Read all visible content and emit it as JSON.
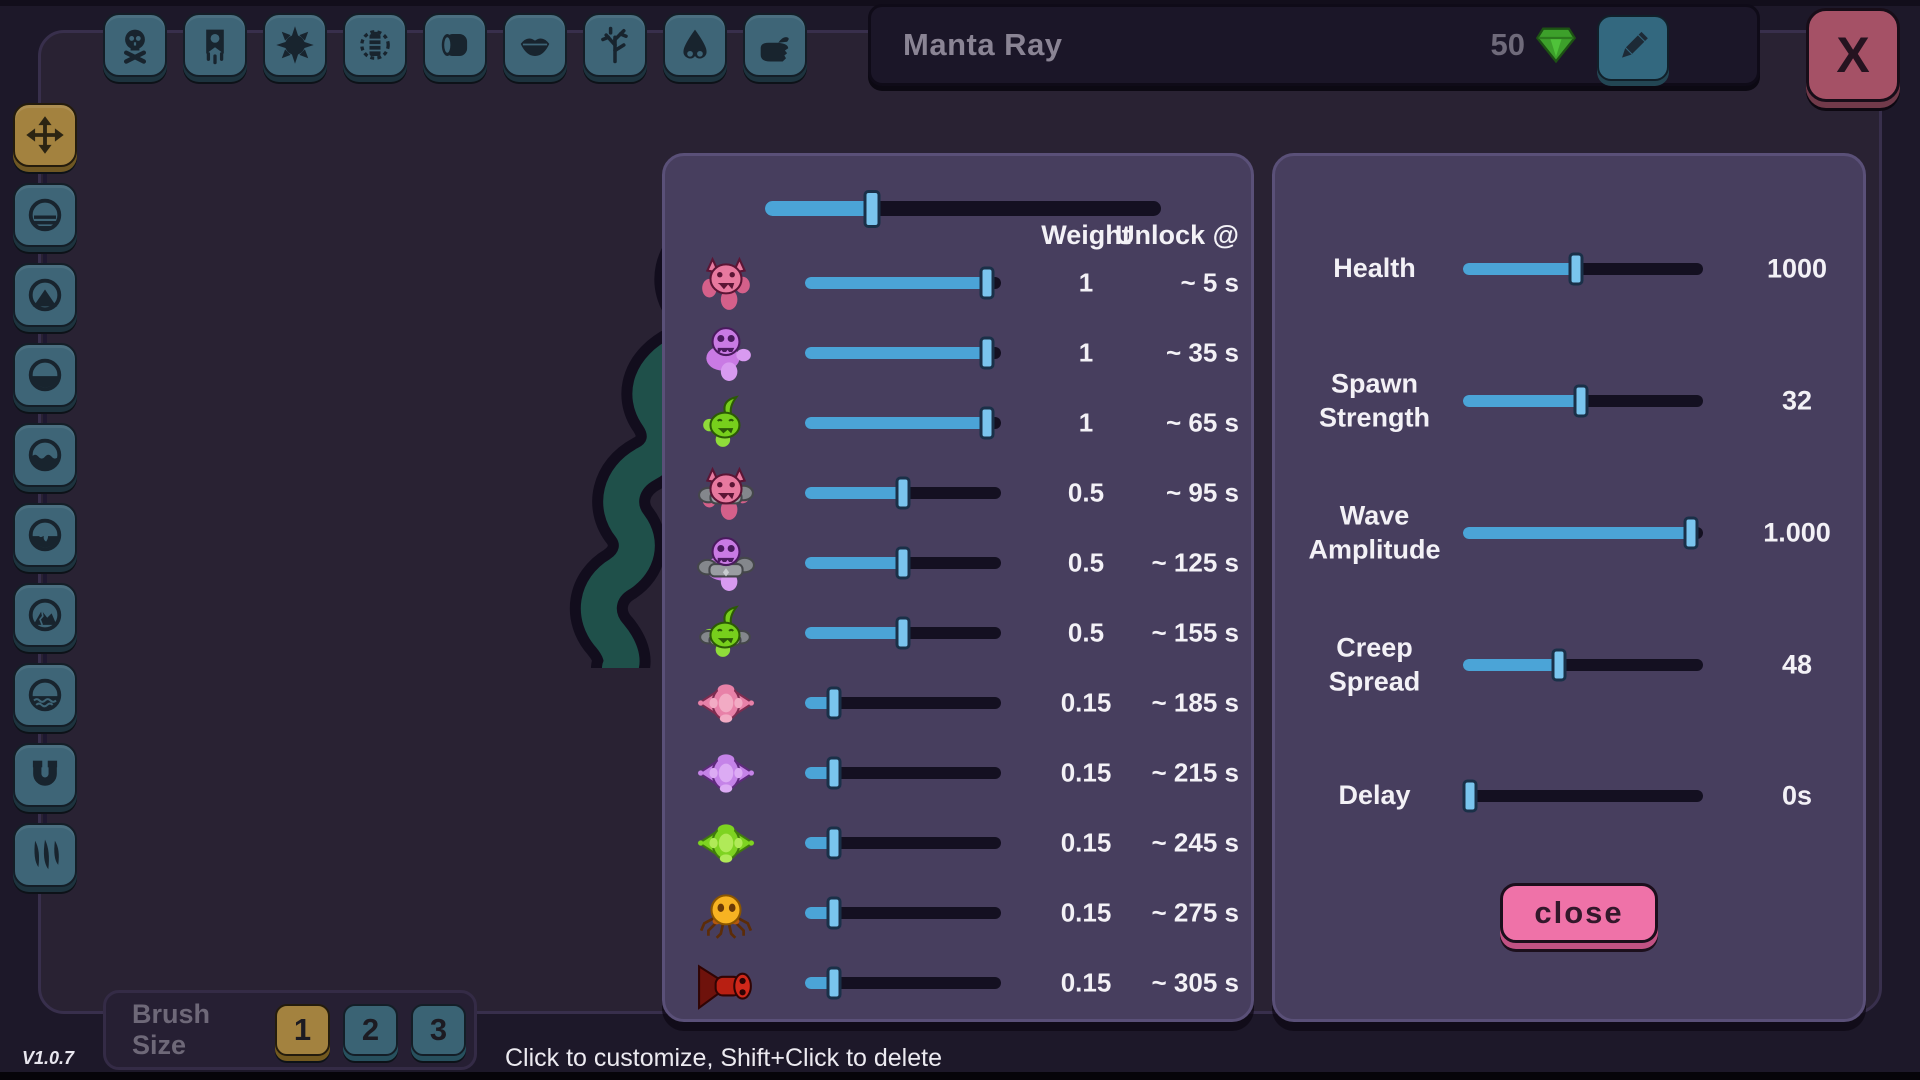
{
  "colors": {
    "accent_blue": "#4ba4d7",
    "slider_handle": "#7ac5ee",
    "track_dark": "#141021",
    "panel_bg": "#473e5e",
    "panel_border": "#5a5078",
    "teal_button": "#3e6577",
    "gold_button": "#a3823f",
    "close_pink": "#ef72a8",
    "x_red": "#a55166",
    "gem_green": "#3da02b",
    "creep_teal": "#1f504a"
  },
  "header": {
    "title": "Manta Ray",
    "currency": "50",
    "close_label": "X"
  },
  "toolbar": {
    "items": [
      {
        "icon": "skull"
      },
      {
        "icon": "banner"
      },
      {
        "icon": "sun"
      },
      {
        "icon": "battery"
      },
      {
        "icon": "barrel"
      },
      {
        "icon": "lips"
      },
      {
        "icon": "tree"
      },
      {
        "icon": "nose"
      },
      {
        "icon": "hand"
      }
    ]
  },
  "sidebar": {
    "items": [
      {
        "icon": "move",
        "active": true
      },
      {
        "icon": "flat",
        "active": false
      },
      {
        "icon": "peak",
        "active": false
      },
      {
        "icon": "half",
        "active": false
      },
      {
        "icon": "wave",
        "active": false
      },
      {
        "icon": "flame",
        "active": false
      },
      {
        "icon": "mountain",
        "active": false
      },
      {
        "icon": "sea",
        "active": false
      },
      {
        "icon": "magnet",
        "active": false
      },
      {
        "icon": "claws",
        "active": false
      }
    ]
  },
  "wave_panel": {
    "master_slider_percent": 27,
    "columns": {
      "weight": "Weight",
      "unlock": "Unlock @"
    },
    "rows": [
      {
        "enemy": "imp-pink",
        "weight": "1",
        "unlock": "~ 5 s",
        "percent": 93
      },
      {
        "enemy": "ghost-purple",
        "weight": "1",
        "unlock": "~ 35 s",
        "percent": 93
      },
      {
        "enemy": "slime-green",
        "weight": "1",
        "unlock": "~ 65 s",
        "percent": 93
      },
      {
        "enemy": "imp-pink-armored",
        "weight": "0.5",
        "unlock": "~ 95 s",
        "percent": 50
      },
      {
        "enemy": "ghost-purple-armored",
        "weight": "0.5",
        "unlock": "~ 125 s",
        "percent": 50
      },
      {
        "enemy": "slime-green-armored",
        "weight": "0.5",
        "unlock": "~ 155 s",
        "percent": 50
      },
      {
        "enemy": "manta-pink",
        "weight": "0.15",
        "unlock": "~ 185 s",
        "percent": 15
      },
      {
        "enemy": "manta-purple",
        "weight": "0.15",
        "unlock": "~ 215 s",
        "percent": 15
      },
      {
        "enemy": "manta-green",
        "weight": "0.15",
        "unlock": "~ 245 s",
        "percent": 15
      },
      {
        "enemy": "spider-orange",
        "weight": "0.15",
        "unlock": "~ 275 s",
        "percent": 15
      },
      {
        "enemy": "horn-red",
        "weight": "0.15",
        "unlock": "~ 305 s",
        "percent": 15
      }
    ]
  },
  "settings_panel": {
    "rows": [
      {
        "label": "Health",
        "value": "1000",
        "percent": 47
      },
      {
        "label": "Spawn Strength",
        "value": "32",
        "percent": 49
      },
      {
        "label": "Wave Amplitude",
        "value": "1.000",
        "percent": 95
      },
      {
        "label": "Creep Spread",
        "value": "48",
        "percent": 40
      },
      {
        "label": "Delay",
        "value": "0s",
        "percent": 3
      }
    ],
    "close_label": "close"
  },
  "footer": {
    "brush_label": "Brush Size",
    "brush_sizes": [
      "1",
      "2",
      "3"
    ],
    "active_brush": 0,
    "status": "Click to customize, Shift+Click to delete",
    "version": "V1.0.7"
  }
}
